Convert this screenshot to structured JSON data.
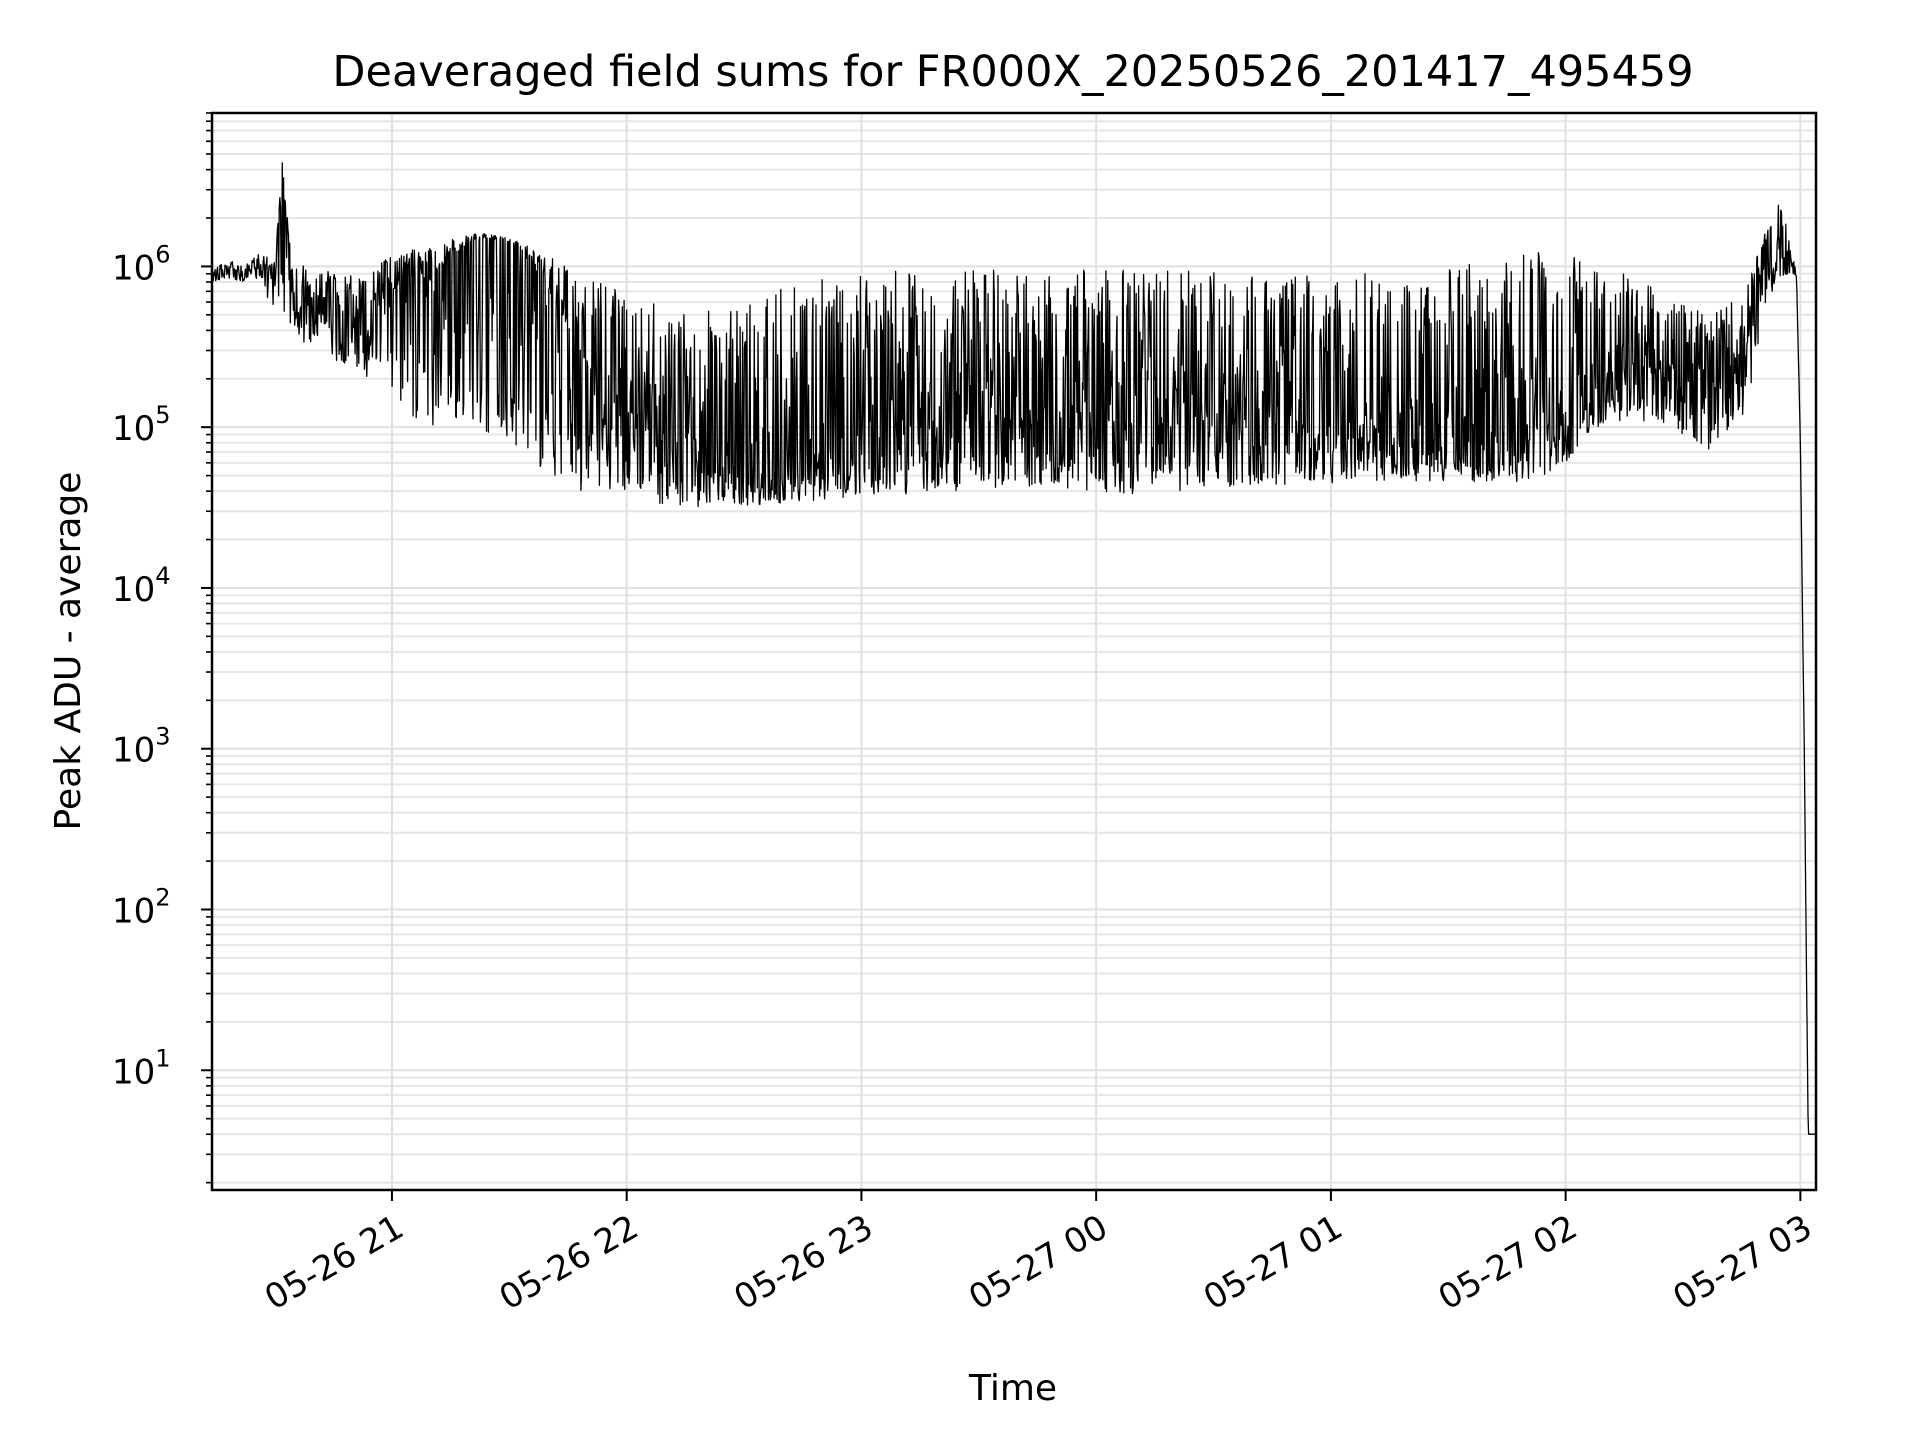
{
  "chart_data": {
    "type": "line",
    "title": "Deaveraged field sums for FR000X_20250526_201417_495459",
    "xlabel": "Time",
    "ylabel": "Peak ADU - average",
    "y_scale": "log",
    "ylim": [
      1.8,
      9000000
    ],
    "xlim": [
      "2025-05-26 20:14",
      "2025-05-27 03:04"
    ],
    "grid": true,
    "legend": "none",
    "line_color": "#000000",
    "x_ticks": [
      {
        "label": "05-26 21",
        "value": "2025-05-26 21:00"
      },
      {
        "label": "05-26 22",
        "value": "2025-05-26 22:00"
      },
      {
        "label": "05-26 23",
        "value": "2025-05-26 23:00"
      },
      {
        "label": "05-27 00",
        "value": "2025-05-27 00:00"
      },
      {
        "label": "05-27 01",
        "value": "2025-05-27 01:00"
      },
      {
        "label": "05-27 02",
        "value": "2025-05-27 02:00"
      },
      {
        "label": "05-27 03",
        "value": "2025-05-27 03:00"
      }
    ],
    "y_ticks": [
      {
        "base": "10",
        "exp": "1",
        "value": 10
      },
      {
        "base": "10",
        "exp": "2",
        "value": 100
      },
      {
        "base": "10",
        "exp": "3",
        "value": 1000
      },
      {
        "base": "10",
        "exp": "4",
        "value": 10000
      },
      {
        "base": "10",
        "exp": "5",
        "value": 100000
      },
      {
        "base": "10",
        "exp": "6",
        "value": 1000000
      }
    ],
    "series": [
      {
        "x": [
          "2025-05-26 20:14",
          "2025-05-26 20:18",
          "2025-05-26 20:22",
          "2025-05-26 20:26",
          "2025-05-26 20:30",
          "2025-05-26 20:32",
          "2025-05-26 20:34",
          "2025-05-26 20:38",
          "2025-05-26 20:42",
          "2025-05-26 20:46",
          "2025-05-26 20:50",
          "2025-05-26 20:54",
          "2025-05-26 21:00",
          "2025-05-26 21:04",
          "2025-05-26 21:10",
          "2025-05-26 21:16",
          "2025-05-26 21:20",
          "2025-05-26 21:24",
          "2025-05-26 21:30",
          "2025-05-26 21:36",
          "2025-05-26 21:42",
          "2025-05-26 21:48",
          "2025-05-26 21:54",
          "2025-05-26 22:00",
          "2025-05-26 22:06",
          "2025-05-26 22:12",
          "2025-05-26 22:18",
          "2025-05-26 22:24",
          "2025-05-26 22:30",
          "2025-05-26 22:36",
          "2025-05-26 22:42",
          "2025-05-26 22:48",
          "2025-05-26 22:54",
          "2025-05-26 23:00",
          "2025-05-26 23:10",
          "2025-05-26 23:20",
          "2025-05-26 23:30",
          "2025-05-26 23:40",
          "2025-05-26 23:50",
          "2025-05-27 00:00",
          "2025-05-27 00:10",
          "2025-05-27 00:20",
          "2025-05-27 00:30",
          "2025-05-27 00:40",
          "2025-05-27 00:50",
          "2025-05-27 01:00",
          "2025-05-27 01:10",
          "2025-05-27 01:20",
          "2025-05-27 01:30",
          "2025-05-27 01:40",
          "2025-05-27 01:50",
          "2025-05-27 02:00",
          "2025-05-27 02:08",
          "2025-05-27 02:16",
          "2025-05-27 02:24",
          "2025-05-27 02:30",
          "2025-05-27 02:36",
          "2025-05-27 02:42",
          "2025-05-27 02:46",
          "2025-05-27 02:50",
          "2025-05-27 02:54",
          "2025-05-27 02:57",
          "2025-05-27 02:59",
          "2025-05-27 03:00",
          "2025-05-27 03:01",
          "2025-05-27 03:02",
          "2025-05-27 03:04"
        ],
        "y": [
          850000,
          1000000,
          900000,
          1000000,
          700000,
          4500000,
          600000,
          450000,
          500000,
          300000,
          400000,
          350000,
          700000,
          900000,
          800000,
          1200000,
          1400000,
          1500000,
          1400000,
          1000000,
          600000,
          300000,
          150000,
          120000,
          90000,
          70000,
          60000,
          55000,
          50000,
          50000,
          55000,
          60000,
          65000,
          70000,
          75000,
          80000,
          90000,
          100000,
          110000,
          110000,
          105000,
          100000,
          100000,
          95000,
          90000,
          85000,
          80000,
          75000,
          70000,
          70000,
          80000,
          120000,
          200000,
          250000,
          200000,
          160000,
          150000,
          200000,
          300000,
          800000,
          1300000,
          1200000,
          1000000,
          80000,
          1000,
          4,
          4
        ],
        "envelope": {
          "low": [
            800000,
            850000,
            800000,
            850000,
            500000,
            500000,
            400000,
            300000,
            300000,
            250000,
            250000,
            200000,
            150000,
            120000,
            100000,
            100000,
            100000,
            90000,
            80000,
            60000,
            45000,
            40000,
            38000,
            35000,
            34000,
            33000,
            32000,
            32000,
            32000,
            33000,
            34000,
            35000,
            36000,
            37000,
            38000,
            40000,
            40000,
            42000,
            42000,
            40000,
            38000,
            40000,
            42000,
            43000,
            44000,
            45000,
            46000,
            46000,
            46000,
            45000,
            44000,
            60000,
            100000,
            110000,
            100000,
            90000,
            70000,
            100000,
            120000,
            400000,
            800000,
            900000,
            800000,
            80000,
            1000,
            4,
            4
          ],
          "high": [
            950000,
            1100000,
            1000000,
            1200000,
            1100000,
            4500000,
            1300000,
            1000000,
            1000000,
            900000,
            900000,
            900000,
            1200000,
            1300000,
            1300000,
            1500000,
            1600000,
            1600000,
            1500000,
            1300000,
            1100000,
            900000,
            800000,
            700000,
            600000,
            550000,
            550000,
            550000,
            600000,
            700000,
            800000,
            850000,
            900000,
            950000,
            950000,
            950000,
            950000,
            950000,
            950000,
            950000,
            950000,
            950000,
            950000,
            950000,
            950000,
            900000,
            900000,
            900000,
            950000,
            1100000,
            1200000,
            1300000,
            1000000,
            900000,
            700000,
            600000,
            500000,
            600000,
            700000,
            1400000,
            2500000,
            2000000,
            1300000,
            80000,
            1000,
            4,
            4
          ]
        }
      }
    ]
  }
}
